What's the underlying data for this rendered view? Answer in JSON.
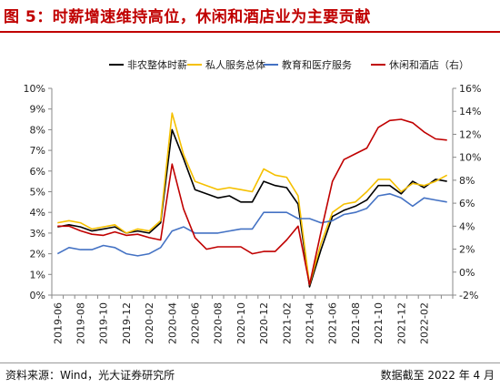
{
  "title": "图 5：时薪增速维持高位，休闲和酒店业为主要贡献",
  "source": "资料来源：Wind，光大证券研究所",
  "date_note": "数据截至 2022 年 4 月",
  "chart_data": {
    "type": "line",
    "x": [
      "2019-06",
      "2019-07",
      "2019-08",
      "2019-09",
      "2019-10",
      "2019-11",
      "2019-12",
      "2020-01",
      "2020-02",
      "2020-03",
      "2020-04",
      "2020-05",
      "2020-06",
      "2020-07",
      "2020-08",
      "2020-09",
      "2020-10",
      "2020-11",
      "2020-12",
      "2021-01",
      "2021-02",
      "2021-03",
      "2021-04",
      "2021-05",
      "2021-06",
      "2021-07",
      "2021-08",
      "2021-09",
      "2021-10",
      "2021-11",
      "2021-12",
      "2022-01",
      "2022-02",
      "2022-03",
      "2022-04"
    ],
    "x_tick_labels": [
      "2019-06",
      "2019-08",
      "2019-10",
      "2019-12",
      "2020-02",
      "2020-04",
      "2020-06",
      "2020-08",
      "2020-10",
      "2020-12",
      "2021-02",
      "2021-04",
      "2021-06",
      "2021-08",
      "2021-10",
      "2021-12",
      "2022-02"
    ],
    "left_axis": {
      "ylim": [
        0,
        10
      ],
      "ticks": [
        "0%",
        "1%",
        "2%",
        "3%",
        "4%",
        "5%",
        "6%",
        "7%",
        "8%",
        "9%",
        "10%"
      ]
    },
    "right_axis": {
      "ylim": [
        -2,
        16
      ],
      "ticks": [
        "-2%",
        "0%",
        "2%",
        "4%",
        "6%",
        "8%",
        "10%",
        "12%",
        "14%",
        "16%"
      ]
    },
    "series": [
      {
        "name": "非农整体时薪",
        "axis": "left",
        "color": "#000000",
        "values": [
          3.3,
          3.4,
          3.3,
          3.1,
          3.2,
          3.3,
          3.0,
          3.1,
          3.0,
          3.5,
          8.0,
          6.6,
          5.1,
          4.9,
          4.7,
          4.8,
          4.5,
          4.5,
          5.5,
          5.3,
          5.2,
          4.4,
          0.4,
          2.2,
          3.8,
          4.1,
          4.3,
          4.6,
          5.3,
          5.3,
          4.9,
          5.5,
          5.2,
          5.6,
          5.5
        ]
      },
      {
        "name": "私人服务总体",
        "axis": "left",
        "color": "#f5c000",
        "values": [
          3.5,
          3.6,
          3.5,
          3.2,
          3.3,
          3.4,
          3.0,
          3.2,
          3.1,
          3.6,
          8.8,
          6.8,
          5.5,
          5.3,
          5.1,
          5.2,
          5.1,
          5.0,
          6.1,
          5.8,
          5.7,
          4.8,
          0.5,
          2.5,
          4.0,
          4.4,
          4.5,
          5.0,
          5.6,
          5.6,
          5.0,
          5.4,
          5.3,
          5.5,
          5.8
        ]
      },
      {
        "name": "教育和医疗服务",
        "axis": "left",
        "color": "#4472c4",
        "values": [
          2.0,
          2.3,
          2.2,
          2.2,
          2.4,
          2.3,
          2.0,
          1.9,
          2.0,
          2.3,
          3.1,
          3.3,
          3.0,
          3.0,
          3.0,
          3.1,
          3.2,
          3.2,
          4.0,
          4.0,
          4.0,
          3.7,
          3.7,
          3.5,
          3.6,
          3.9,
          4.0,
          4.2,
          4.8,
          4.9,
          4.7,
          4.3,
          4.7,
          4.6,
          4.5
        ]
      },
      {
        "name": "休闲和酒店（右）",
        "axis": "right",
        "color": "#c00000",
        "values": [
          4.0,
          4.0,
          3.6,
          3.3,
          3.2,
          3.5,
          3.2,
          3.3,
          3.0,
          2.8,
          9.4,
          5.5,
          3.0,
          2.0,
          2.2,
          2.2,
          2.2,
          1.6,
          1.8,
          1.8,
          2.8,
          4.0,
          -1.1,
          3.5,
          7.9,
          9.8,
          10.3,
          10.8,
          12.6,
          13.2,
          13.3,
          13.0,
          12.2,
          11.6,
          11.5
        ]
      }
    ],
    "legend_position": "top",
    "grid": false
  }
}
